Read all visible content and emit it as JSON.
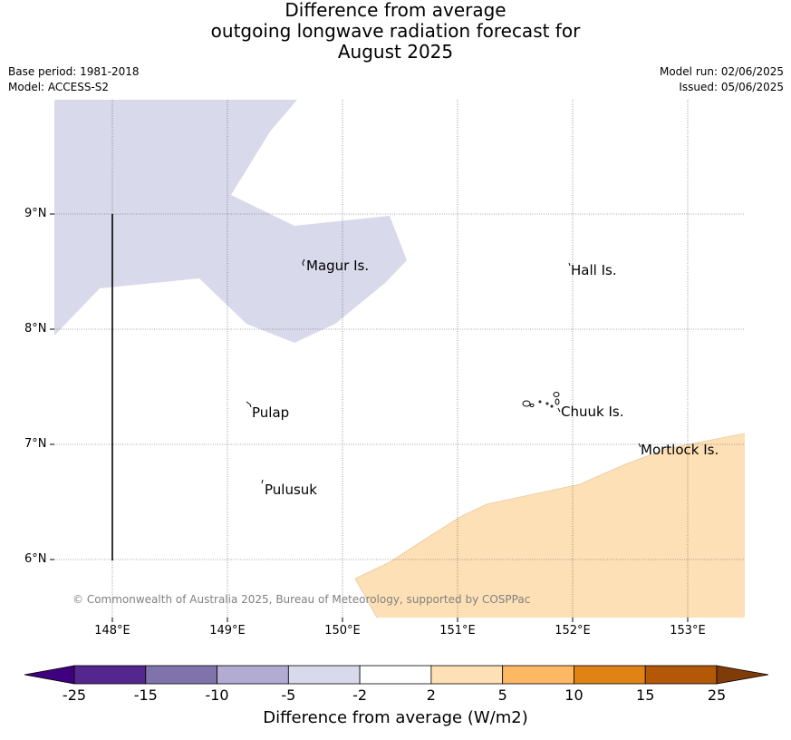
{
  "title": {
    "line1": "Difference from average",
    "line2": "outgoing longwave radiation forecast for",
    "line3": "August 2025"
  },
  "meta_left": {
    "base_period": "Base period: 1981-2018",
    "model": "Model: ACCESS-S2"
  },
  "meta_right": {
    "model_run": "Model run: 02/06/2025",
    "issued": "Issued: 05/06/2025"
  },
  "map": {
    "lat_labels": [
      "9°N",
      "8°N",
      "7°N",
      "6°N"
    ],
    "lon_labels": [
      "148°E",
      "149°E",
      "150°E",
      "151°E",
      "152°E",
      "153°E"
    ],
    "places": [
      "Magur Is.",
      "Hall Is.",
      "Pulap",
      "Chuuk Is.",
      "Mortlock Is.",
      "Pulusuk"
    ],
    "copyright": "© Commonwealth of Australia 2025, Bureau of Meteorology, supported by COSPPac",
    "colors": {
      "negative_shade": "#d8d9ea",
      "positive_shade": "#fde0b6"
    }
  },
  "colorbar": {
    "ticks": [
      "-25",
      "-15",
      "-10",
      "-5",
      "-2",
      "2",
      "5",
      "10",
      "15",
      "25"
    ],
    "label": "Difference from average (W/m2)",
    "colors": [
      "#3f007d",
      "#54278f",
      "#8073ac",
      "#b2abd2",
      "#d8daeb",
      "#ffffff",
      "#fee0b6",
      "#fdb863",
      "#e08214",
      "#b35806",
      "#7f3b08"
    ]
  }
}
